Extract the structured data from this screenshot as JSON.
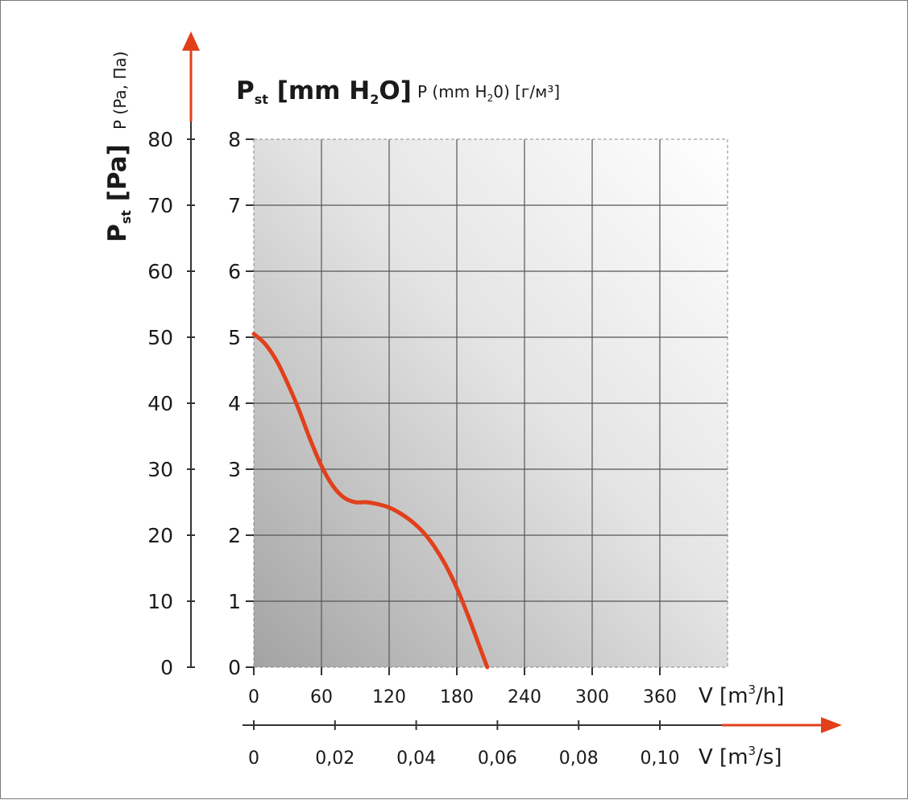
{
  "chart_data": {
    "type": "line",
    "title": "",
    "primary_y_label": {
      "main": "P",
      "sub": "st",
      "rest": " [mm H",
      "sub2": "2",
      "rest2": "O]"
    },
    "secondary_y_label_top": {
      "text": "P (mm H",
      "sub": "2",
      "rest": "0) [г/м³]"
    },
    "outer_y_label": {
      "main": "P",
      "sub": "st",
      "rest": " [Pa]"
    },
    "outer_y_label_alt": "P (Pa, Па)",
    "y_mmH2O_ticks": [
      "0",
      "1",
      "2",
      "3",
      "4",
      "5",
      "6",
      "7",
      "8"
    ],
    "y_Pa_ticks": [
      "0",
      "10",
      "20",
      "30",
      "40",
      "50",
      "60",
      "70",
      "80"
    ],
    "ylim": [
      0,
      8
    ],
    "x_m3h_ticks": [
      "0",
      "60",
      "120",
      "180",
      "240",
      "300",
      "360"
    ],
    "x_m3h_label": {
      "text": "V [m",
      "sup": "3",
      "rest": "/h]"
    },
    "x_m3s_ticks": [
      "0",
      "0,02",
      "0,04",
      "0,06",
      "0,08",
      "0,10"
    ],
    "x_m3s_label": {
      "text": "V [m",
      "sup": "3",
      "rest": "/s]"
    },
    "xlim_m3h": [
      0,
      420
    ],
    "grid": true,
    "series": [
      {
        "color": "#e1401b",
        "x": [
          0,
          10,
          20,
          30,
          40,
          50,
          60,
          70,
          80,
          90,
          100,
          110,
          120,
          130,
          140,
          150,
          160,
          170,
          180,
          190,
          200,
          207
        ],
        "y": [
          5.05,
          4.9,
          4.65,
          4.3,
          3.9,
          3.45,
          3.05,
          2.75,
          2.57,
          2.5,
          2.5,
          2.47,
          2.42,
          2.33,
          2.21,
          2.05,
          1.83,
          1.55,
          1.2,
          0.78,
          0.32,
          0.0
        ]
      }
    ]
  },
  "colors": {
    "curve": "#e1401b",
    "arrow": "#e1401b",
    "grid": "#555555",
    "plot_bg_dark": "#a6a6a6",
    "plot_bg_light": "#ffffff"
  }
}
